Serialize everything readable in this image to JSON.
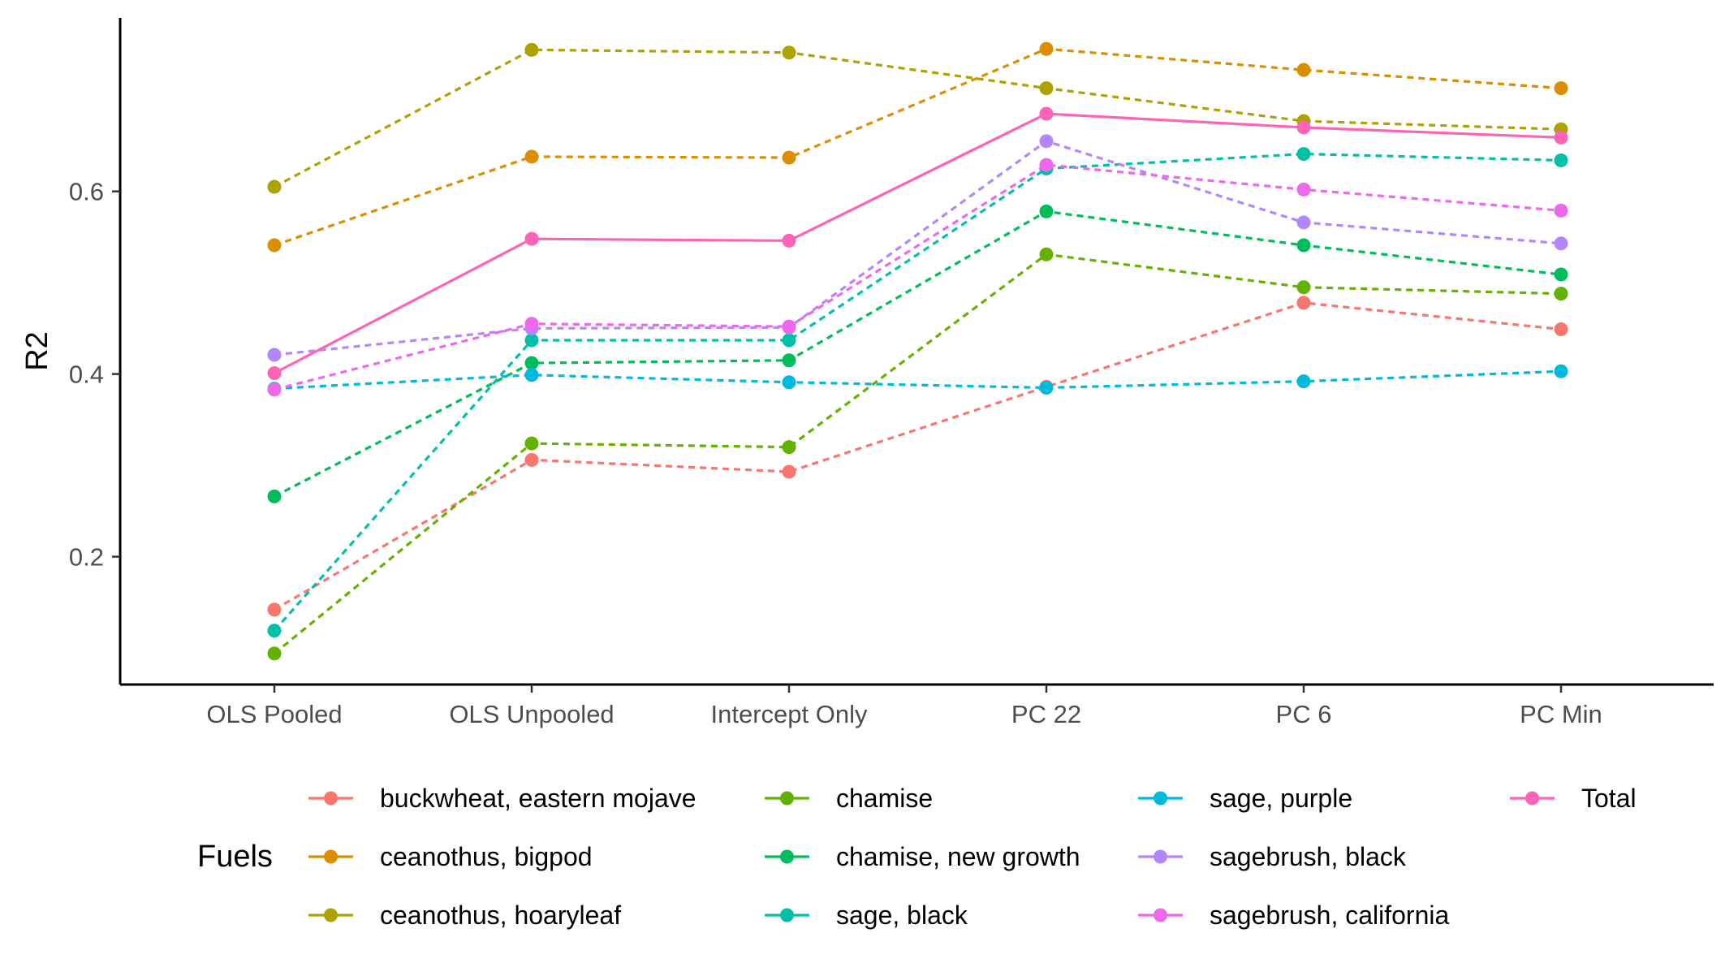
{
  "chart_data": {
    "type": "line",
    "title": "",
    "xlabel": "",
    "ylabel": "R2",
    "categories": [
      "OLS Pooled",
      "OLS Unpooled",
      "Intercept Only",
      "PC 22",
      "PC 6",
      "PC Min"
    ],
    "ylim": [
      0.06,
      0.79
    ],
    "yticks": [
      0.2,
      0.4,
      0.6
    ],
    "ytick_labels": [
      "0.2",
      "0.4",
      "0.6"
    ],
    "grid": false,
    "legend": {
      "title": "Fuels",
      "placement": "bottom",
      "columns": 4
    },
    "series": [
      {
        "name": "buckwheat, eastern mojave",
        "color": "#F8766D",
        "dashed": true,
        "values": [
          0.142,
          0.306,
          0.293,
          0.386,
          0.478,
          0.449
        ]
      },
      {
        "name": "ceanothus, bigpod",
        "color": "#DB8E00",
        "dashed": true,
        "values": [
          0.541,
          0.638,
          0.637,
          0.756,
          0.733,
          0.713
        ]
      },
      {
        "name": "ceanothus, hoaryleaf",
        "color": "#AEA200",
        "dashed": true,
        "values": [
          0.605,
          0.755,
          0.752,
          0.713,
          0.677,
          0.668
        ]
      },
      {
        "name": "chamise",
        "color": "#64B200",
        "dashed": true,
        "values": [
          0.094,
          0.324,
          0.32,
          0.531,
          0.495,
          0.488
        ]
      },
      {
        "name": "chamise, new growth",
        "color": "#00BD5C",
        "dashed": true,
        "values": [
          0.266,
          0.412,
          0.415,
          0.578,
          0.541,
          0.509
        ]
      },
      {
        "name": "sage, black",
        "color": "#00C1A7",
        "dashed": true,
        "values": [
          0.119,
          0.437,
          0.437,
          0.625,
          0.641,
          0.634
        ]
      },
      {
        "name": "sage, purple",
        "color": "#00BADE",
        "dashed": true,
        "values": [
          0.384,
          0.399,
          0.391,
          0.385,
          0.392,
          0.403
        ]
      },
      {
        "name": "sagebrush, black",
        "color": "#B385FF",
        "dashed": true,
        "values": [
          0.421,
          0.45,
          0.451,
          0.655,
          0.566,
          0.543
        ]
      },
      {
        "name": "sagebrush, california",
        "color": "#EF67EB",
        "dashed": true,
        "values": [
          0.383,
          0.455,
          0.452,
          0.629,
          0.602,
          0.579
        ]
      },
      {
        "name": "Total",
        "color": "#FF63B6",
        "dashed": false,
        "values": [
          0.401,
          0.548,
          0.546,
          0.685,
          0.67,
          0.659
        ]
      }
    ]
  }
}
